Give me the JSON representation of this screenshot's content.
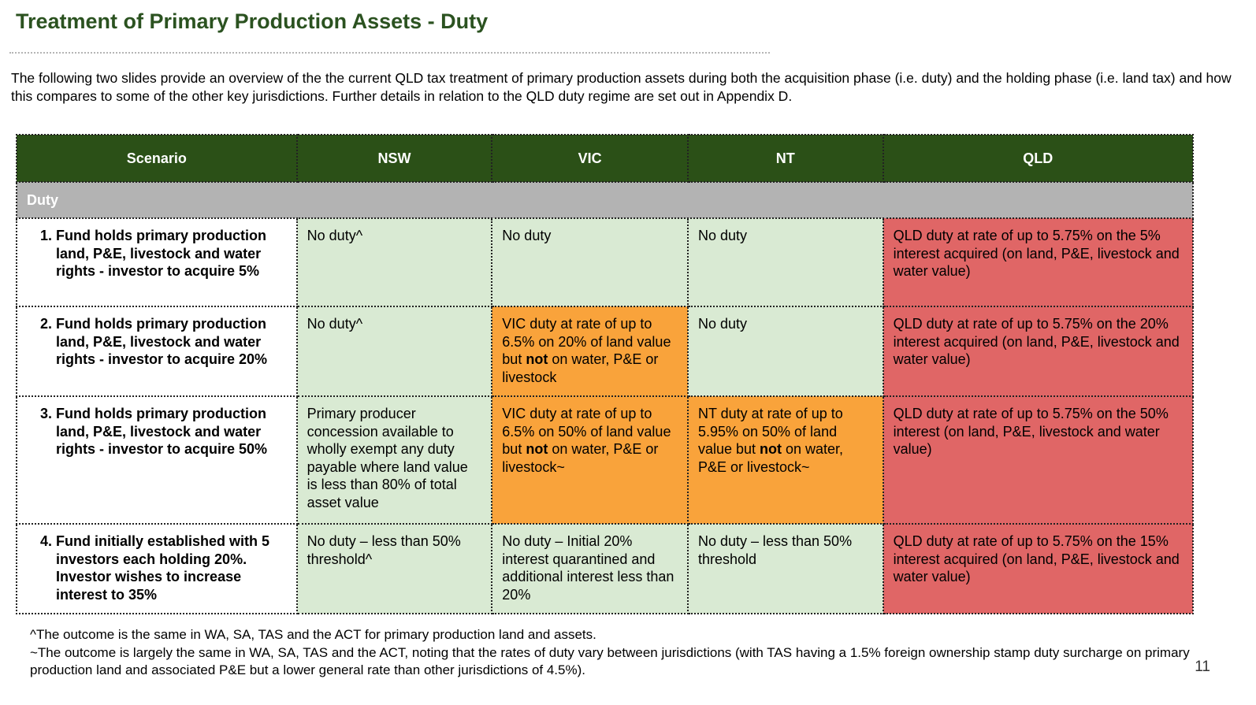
{
  "title": "Treatment of Primary Production Assets - Duty",
  "intro": "The following two slides provide an overview of the the current QLD tax treatment of primary production assets during both the acquisition phase (i.e. duty) and the holding phase (i.e. land tax) and how this compares to some of the other key jurisdictions.  Further details in relation to the QLD duty regime are set out in Appendix D.",
  "table": {
    "headers": [
      "Scenario",
      "NSW",
      "VIC",
      "NT",
      "QLD"
    ],
    "section": "Duty",
    "rows": [
      {
        "num": "1.",
        "scenario": "Fund holds primary production land, P&E, livestock and water rights - investor to acquire 5%",
        "nsw": "No duty^",
        "vic": "No duty",
        "nt": "No duty",
        "qld": "QLD duty at rate of up to 5.75% on the 5% interest acquired (on land, P&E, livestock and water value)"
      },
      {
        "num": "2.",
        "scenario": "Fund holds primary production land, P&E, livestock and water rights - investor to acquire 20%",
        "nsw": "No duty^",
        "vic_pre": "VIC duty at rate of up to 6.5% on 20% of land value but ",
        "vic_bold": "not",
        "vic_post": " on water, P&E or livestock",
        "nt": "No duty",
        "qld": "QLD duty at rate of up to 5.75% on the 20% interest acquired (on land, P&E, livestock and water value)"
      },
      {
        "num": "3.",
        "scenario": "Fund holds primary production land, P&E, livestock and water rights - investor to acquire 50%",
        "nsw": "Primary producer concession available to wholly exempt any duty payable where land value is less than 80% of total asset value",
        "vic_pre": "VIC duty at rate of up to 6.5% on 50% of land value but ",
        "vic_bold": "not",
        "vic_post": " on water, P&E or livestock~",
        "nt_pre": "NT duty at rate of up to 5.95% on 50% of land value but ",
        "nt_bold": "not",
        "nt_post": " on water, P&E or livestock~",
        "qld": "QLD duty at rate of up to 5.75% on the 50% interest (on land, P&E, livestock and water value)"
      },
      {
        "num": "4.",
        "scenario": "Fund initially established with 5 investors each holding 20%. Investor wishes to increase interest to 35%",
        "nsw": "No duty – less than 50% threshold^",
        "vic": "No duty – Initial 20% interest quarantined and additional interest less than 20%",
        "nt": "No duty – less than 50% threshold",
        "qld": "QLD duty at rate of up to 5.75% on the 15% interest acquired (on land, P&E, livestock and water value)"
      }
    ]
  },
  "footnotes": [
    "^The outcome is the same in WA, SA, TAS and the ACT for primary production land and assets.",
    "~The outcome is largely the same in WA, SA, TAS and the ACT, noting that the rates of duty vary between jurisdictions (with TAS having a 1.5% foreign ownership stamp duty surcharge on primary production land and associated P&E but a lower general rate than other jurisdictions of 4.5%)."
  ],
  "page_number": "11",
  "colors": {
    "title": "#2b5220",
    "header_bg": "#2b5017",
    "section_bg": "#b3b3b3",
    "green": "#d9ead3",
    "orange": "#f9a33b",
    "red": "#e06666"
  }
}
